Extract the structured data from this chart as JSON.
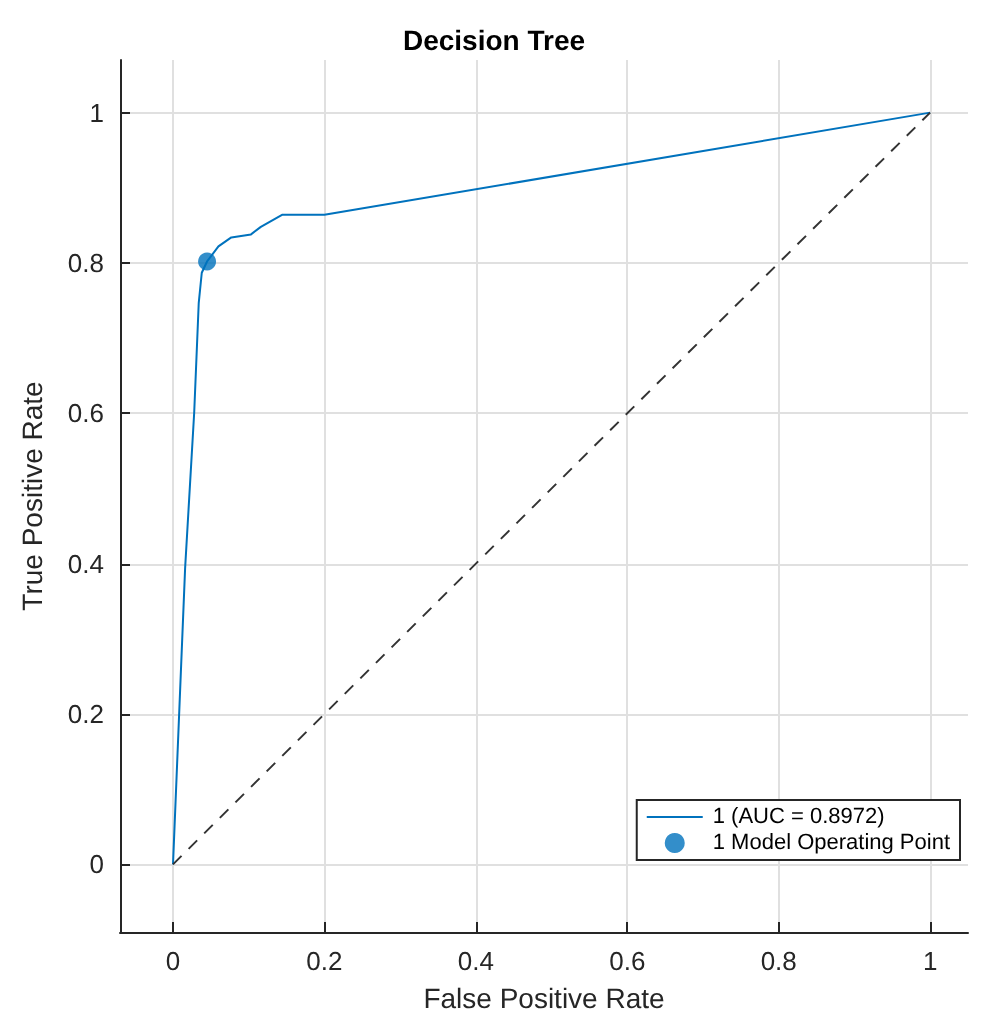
{
  "chart_data": {
    "type": "line",
    "title": "Decision Tree",
    "xlabel": "False Positive Rate",
    "ylabel": "True Positive Rate",
    "xlim": [
      -0.07,
      1.05
    ],
    "ylim": [
      -0.09,
      1.07
    ],
    "xticks": [
      0,
      0.2,
      0.4,
      0.6,
      0.8,
      1
    ],
    "yticks": [
      0,
      0.2,
      0.4,
      0.6,
      0.8,
      1
    ],
    "grid": true,
    "legend": "bottom right",
    "series": [
      {
        "name": "1 (AUC = 0.8972)",
        "color": "#0072bd",
        "marker": "none",
        "x": [
          0,
          0.016,
          0.028,
          0.034,
          0.038,
          0.045,
          0.06,
          0.077,
          0.103,
          0.116,
          0.144,
          0.2,
          1
        ],
        "values": [
          0,
          0.394,
          0.601,
          0.747,
          0.787,
          0.802,
          0.822,
          0.834,
          0.838,
          0.848,
          0.864,
          0.864,
          1
        ]
      },
      {
        "name": "1 Model Operating Point",
        "type": "scatter",
        "color": "#0072bd",
        "marker": "circle",
        "x": [
          0.045
        ],
        "values": [
          0.802
        ]
      },
      {
        "color": "#333333",
        "marker": "none",
        "line_style": "dashed",
        "x": [
          0,
          1
        ],
        "values": [
          0,
          1
        ]
      }
    ]
  }
}
